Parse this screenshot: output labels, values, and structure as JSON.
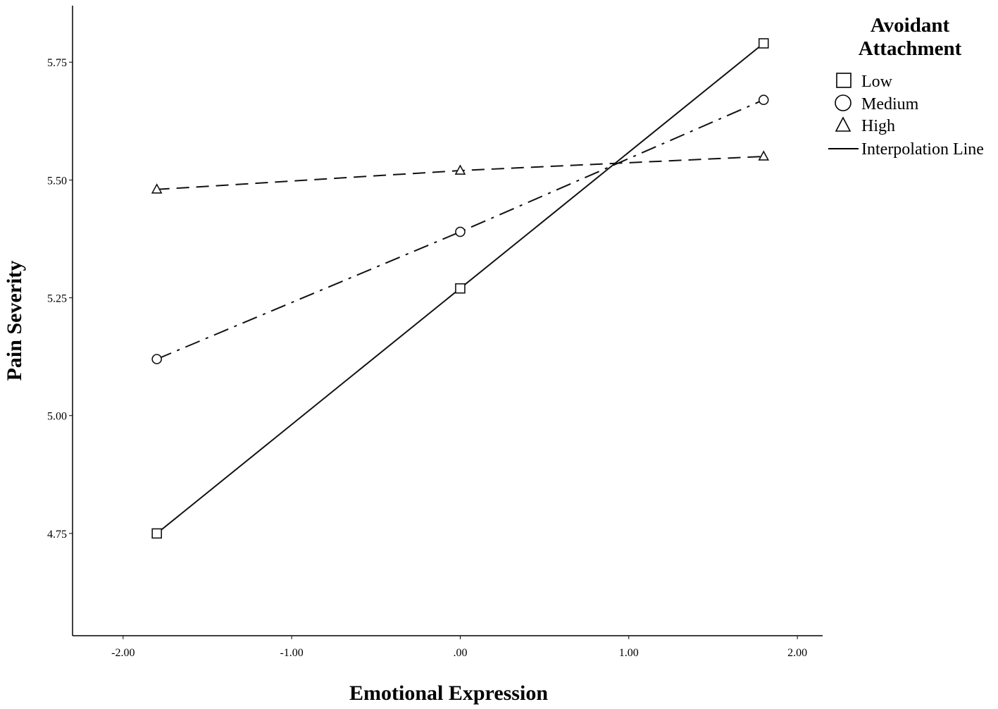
{
  "chart_data": {
    "type": "line",
    "xlabel": "Emotional Expression",
    "ylabel": "Pain Severity",
    "xlim": [
      -2.3,
      2.15
    ],
    "ylim": [
      4.533,
      5.87
    ],
    "x_ticks": [
      -2.0,
      -1.0,
      0.0,
      1.0,
      2.0
    ],
    "x_tick_labels": [
      "-2.00",
      "-1.00",
      ".00",
      "1.00",
      "2.00"
    ],
    "y_ticks": [
      4.75,
      5.0,
      5.25,
      5.5,
      5.75
    ],
    "y_tick_labels": [
      "4.75",
      "5.00",
      "5.25",
      "5.50",
      "5.75"
    ],
    "x": [
      -1.8,
      0.0,
      1.8
    ],
    "series": [
      {
        "name": "Low",
        "marker": "square",
        "line": "solid",
        "values": [
          4.75,
          5.27,
          5.79
        ]
      },
      {
        "name": "Medium",
        "marker": "circle",
        "line": "dashdot",
        "values": [
          5.12,
          5.39,
          5.67
        ]
      },
      {
        "name": "High",
        "marker": "triangle",
        "line": "dashed",
        "values": [
          5.48,
          5.52,
          5.55
        ]
      }
    ],
    "legend": {
      "title_lines": [
        "Avoidant",
        "Attachment"
      ],
      "placement": "top-right",
      "line_entry_label": "Interpolation Line"
    },
    "grid": false
  }
}
